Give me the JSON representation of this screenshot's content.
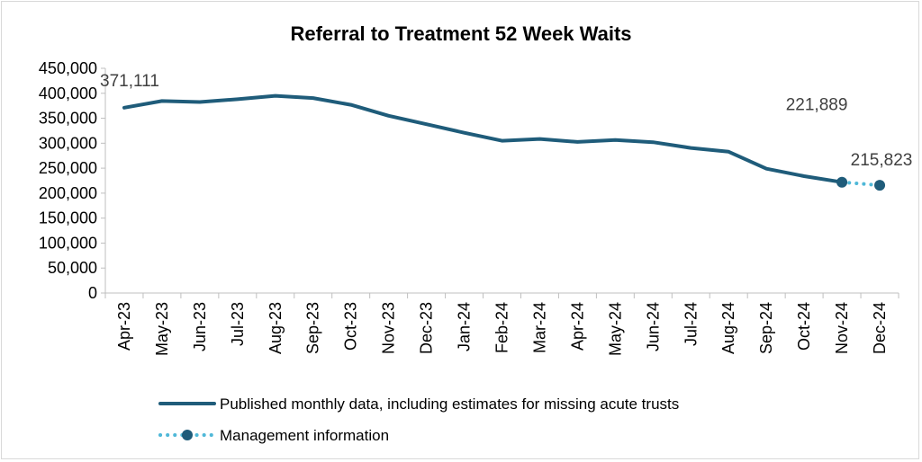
{
  "chart_data": {
    "type": "line",
    "title": "Referral to Treatment 52 Week Waits",
    "xlabel": "",
    "ylabel": "",
    "ylim": [
      0,
      450000
    ],
    "ytick_labels": [
      "0",
      "50,000",
      "100,000",
      "150,000",
      "200,000",
      "250,000",
      "300,000",
      "350,000",
      "400,000",
      "450,000"
    ],
    "categories": [
      "Apr-23",
      "May-23",
      "Jun-23",
      "Jul-23",
      "Aug-23",
      "Sep-23",
      "Oct-23",
      "Nov-23",
      "Dec-23",
      "Jan-24",
      "Feb-24",
      "Mar-24",
      "Apr-24",
      "May-24",
      "Jun-24",
      "Jul-24",
      "Aug-24",
      "Sep-24",
      "Oct-24",
      "Nov-24",
      "Dec-24"
    ],
    "series": [
      {
        "name": "Published monthly data, including estimates for missing acute trusts",
        "color": "#1f5c7a",
        "style": "solid",
        "values": [
          371111,
          384500,
          382500,
          388000,
          395000,
          390500,
          377000,
          355000,
          338000,
          321000,
          305000,
          308500,
          302500,
          306500,
          302000,
          290500,
          283000,
          249000,
          234000,
          221889,
          null
        ]
      },
      {
        "name": "Management information",
        "color": "#4fb8d8",
        "marker_color": "#1f5c7a",
        "style": "dotted",
        "values": [
          null,
          null,
          null,
          null,
          null,
          null,
          null,
          null,
          null,
          null,
          null,
          null,
          null,
          null,
          null,
          null,
          null,
          null,
          null,
          221889,
          215823
        ]
      }
    ],
    "annotations": [
      {
        "text": "371,111",
        "category": "Apr-23",
        "value": 371111
      },
      {
        "text": "221,889",
        "category": "Nov-24",
        "value": 221889
      },
      {
        "text": "215,823",
        "category": "Dec-24",
        "value": 215823
      }
    ],
    "grid": false,
    "legend_position": "bottom"
  }
}
